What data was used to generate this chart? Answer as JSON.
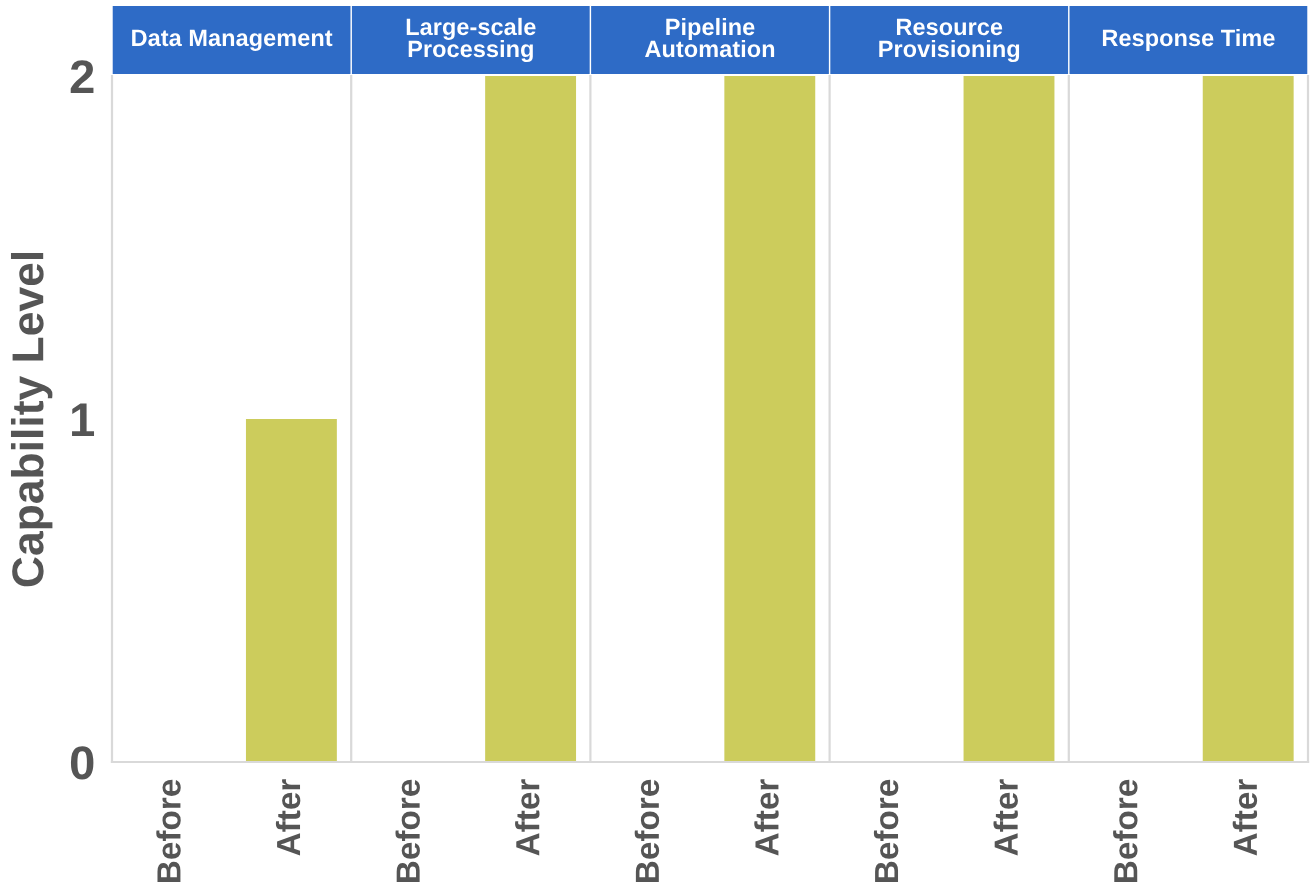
{
  "chart_data": [
    {
      "type": "bar",
      "title": "Data Management",
      "ylabel": "Capability Level",
      "categories": [
        "Before",
        "After"
      ],
      "values": [
        0,
        1
      ],
      "color": "#cccc5c",
      "ylim": [
        0,
        2
      ],
      "yticks": [
        0,
        1,
        2
      ],
      "grid": false
    },
    {
      "type": "bar",
      "title": "Large-scale Processing",
      "categories": [
        "Before",
        "After"
      ],
      "values": [
        0,
        2
      ],
      "color": "#cccc5c",
      "ylim": [
        0,
        2
      ],
      "yticks": [
        0,
        1,
        2
      ],
      "grid": false,
      "tick_labels": "x"
    },
    {
      "type": "bar",
      "title": "Pipeline Automation",
      "categories": [
        "Before",
        "After"
      ],
      "values": [
        0,
        2
      ],
      "color": "#cccc5c",
      "ylim": [
        0,
        2
      ],
      "yticks": [
        0,
        1,
        2
      ],
      "grid": false,
      "tick_labels": "x"
    },
    {
      "type": "bar",
      "title": "Resource Provisioning",
      "categories": [
        "Before",
        "After"
      ],
      "values": [
        0,
        2
      ],
      "color": "#cccc5c",
      "ylim": [
        0,
        2
      ],
      "yticks": [
        0,
        1,
        2
      ],
      "grid": false,
      "tick_labels": "x"
    },
    {
      "type": "bar",
      "title": "Response Time",
      "categories": [
        "Before",
        "After"
      ],
      "values": [
        0,
        2
      ],
      "color": "#cccc5c",
      "ylim": [
        0,
        2
      ],
      "yticks": [
        0,
        1,
        2
      ],
      "grid": false,
      "tick_labels": "x"
    }
  ]
}
